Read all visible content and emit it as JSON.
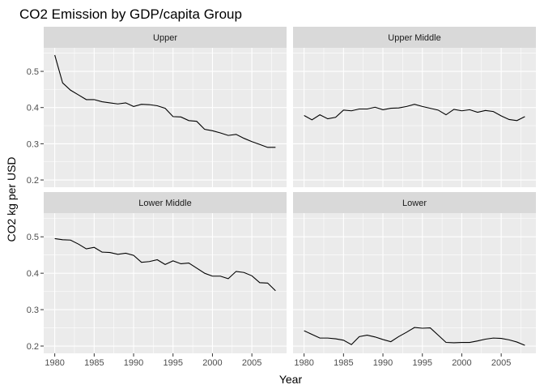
{
  "chart_data": {
    "type": "line",
    "title": "CO2 Emission by GDP/capita Group",
    "xlabel": "Year",
    "ylabel": "CO2 kg per USD",
    "xlim": [
      1978.6,
      2009.4
    ],
    "ylim": [
      0.18,
      0.565
    ],
    "x_ticks": [
      1980,
      1985,
      1990,
      1995,
      2000,
      2005
    ],
    "x_tick_labels": [
      "1980",
      "1985",
      "1990",
      "1995",
      "2000",
      "2005"
    ],
    "y_ticks": [
      0.2,
      0.3,
      0.4,
      0.5
    ],
    "y_tick_labels": [
      "0.2",
      "0.3",
      "0.4",
      "0.5"
    ],
    "grid": true,
    "x": [
      1980,
      1981,
      1982,
      1983,
      1984,
      1985,
      1986,
      1987,
      1988,
      1989,
      1990,
      1991,
      1992,
      1993,
      1994,
      1995,
      1996,
      1997,
      1998,
      1999,
      2000,
      2001,
      2002,
      2003,
      2004,
      2005,
      2006,
      2007,
      2008
    ],
    "panels": [
      {
        "label": "Upper",
        "values": [
          0.545,
          0.468,
          0.448,
          0.435,
          0.422,
          0.422,
          0.416,
          0.413,
          0.41,
          0.413,
          0.403,
          0.409,
          0.408,
          0.405,
          0.398,
          0.375,
          0.374,
          0.364,
          0.362,
          0.34,
          0.336,
          0.33,
          0.323,
          0.326,
          0.315,
          0.306,
          0.298,
          0.29,
          0.29
        ]
      },
      {
        "label": "Upper Middle",
        "values": [
          0.378,
          0.366,
          0.38,
          0.369,
          0.373,
          0.393,
          0.391,
          0.396,
          0.396,
          0.401,
          0.394,
          0.398,
          0.399,
          0.403,
          0.409,
          0.403,
          0.398,
          0.393,
          0.38,
          0.395,
          0.391,
          0.394,
          0.387,
          0.392,
          0.389,
          0.377,
          0.367,
          0.364,
          0.375
        ]
      },
      {
        "label": "Lower Middle",
        "values": [
          0.495,
          0.492,
          0.491,
          0.48,
          0.467,
          0.471,
          0.458,
          0.457,
          0.452,
          0.455,
          0.449,
          0.43,
          0.432,
          0.437,
          0.424,
          0.434,
          0.426,
          0.428,
          0.414,
          0.4,
          0.392,
          0.392,
          0.385,
          0.405,
          0.402,
          0.393,
          0.374,
          0.373,
          0.352
        ]
      },
      {
        "label": "Lower",
        "values": [
          0.242,
          0.232,
          0.222,
          0.222,
          0.22,
          0.216,
          0.204,
          0.226,
          0.23,
          0.225,
          0.218,
          0.212,
          0.226,
          0.238,
          0.251,
          0.249,
          0.25,
          0.23,
          0.21,
          0.209,
          0.21,
          0.21,
          0.214,
          0.219,
          0.222,
          0.221,
          0.217,
          0.211,
          0.202
        ]
      }
    ]
  }
}
